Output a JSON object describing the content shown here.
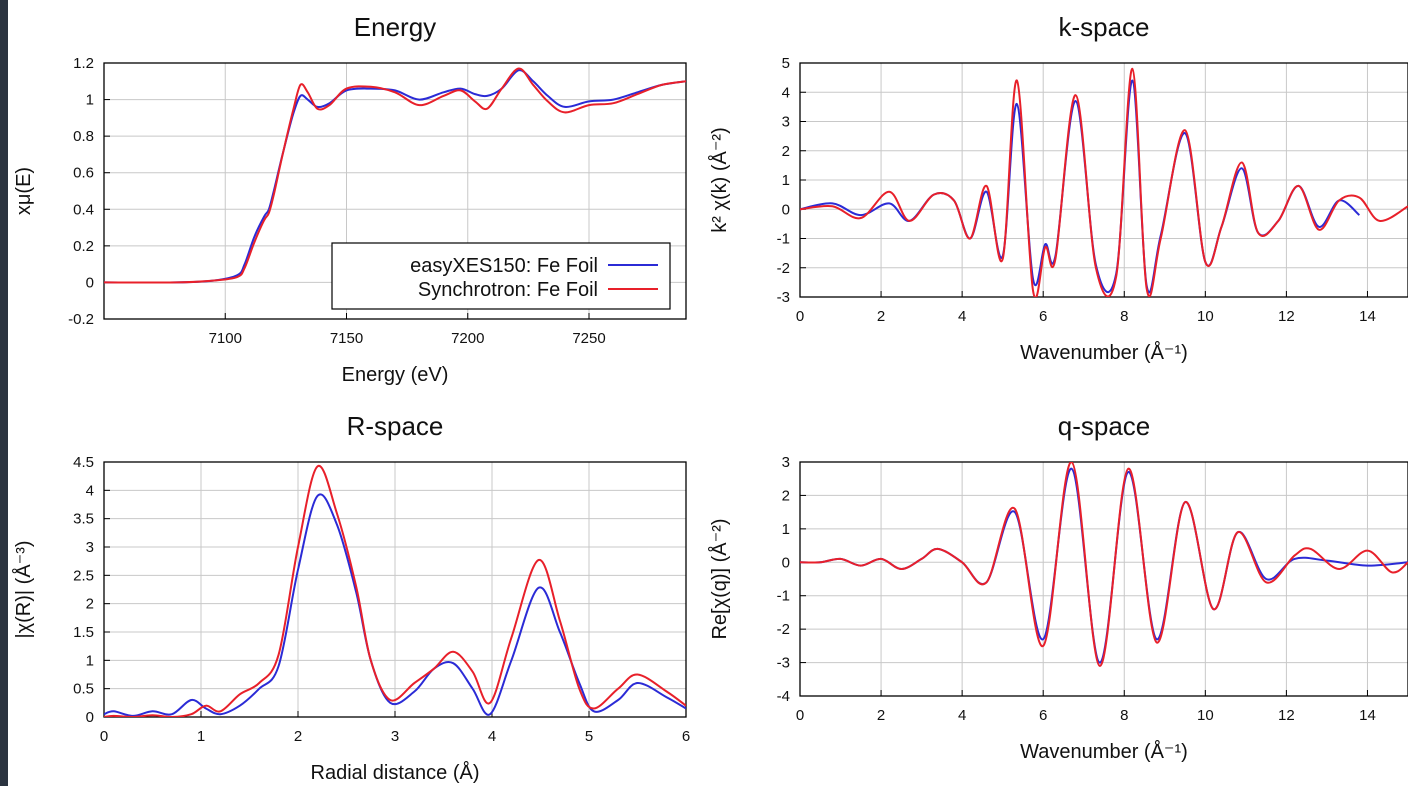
{
  "colors": {
    "blue": "#2b2bd6",
    "red": "#e8202a",
    "grid": "#c8c8c8",
    "frame": "#000000"
  },
  "chart_data": [
    {
      "type": "line",
      "title": "Energy",
      "xlabel": "Energy    (eV)",
      "ylabel": "xμ(E)",
      "xlim": [
        7050,
        7290
      ],
      "ylim": [
        -0.2,
        1.2
      ],
      "xticks": [
        7100,
        7150,
        7200,
        7250
      ],
      "yticks": [
        -0.2,
        0,
        0.2,
        0.4,
        0.6,
        0.8,
        1,
        1.2
      ],
      "legend": {
        "placement": "lower-right",
        "entries": [
          "easyXES150: Fe Foil",
          "Synchrotron: Fe Foil"
        ]
      },
      "series": [
        {
          "name": "easyXES150: Fe Foil",
          "color": "blue",
          "x": [
            7050,
            7080,
            7095,
            7105,
            7108,
            7112,
            7116,
            7118,
            7120,
            7124,
            7128,
            7131,
            7134,
            7138,
            7143,
            7150,
            7160,
            7170,
            7180,
            7190,
            7197,
            7203,
            7208,
            7214,
            7221,
            7227,
            7233,
            7240,
            7250,
            7260,
            7270,
            7280,
            7290
          ],
          "y": [
            0,
            0,
            0.01,
            0.04,
            0.1,
            0.25,
            0.36,
            0.4,
            0.5,
            0.72,
            0.92,
            1.02,
            1.0,
            0.96,
            0.98,
            1.05,
            1.06,
            1.05,
            1.0,
            1.04,
            1.06,
            1.03,
            1.02,
            1.06,
            1.16,
            1.1,
            1.02,
            0.96,
            0.99,
            1.0,
            1.04,
            1.08,
            1.1
          ]
        },
        {
          "name": "Synchrotron: Fe Foil",
          "color": "red",
          "x": [
            7050,
            7080,
            7095,
            7105,
            7108,
            7112,
            7116,
            7118,
            7120,
            7124,
            7128,
            7131,
            7134,
            7138,
            7143,
            7150,
            7160,
            7170,
            7180,
            7190,
            7197,
            7203,
            7208,
            7214,
            7221,
            7227,
            7233,
            7240,
            7250,
            7260,
            7270,
            7280,
            7290
          ],
          "y": [
            0,
            0,
            0.01,
            0.03,
            0.08,
            0.22,
            0.34,
            0.38,
            0.48,
            0.72,
            0.94,
            1.08,
            1.04,
            0.95,
            0.97,
            1.06,
            1.07,
            1.04,
            0.97,
            1.02,
            1.05,
            0.99,
            0.95,
            1.06,
            1.17,
            1.08,
            0.99,
            0.93,
            0.97,
            0.98,
            1.03,
            1.08,
            1.1
          ]
        }
      ]
    },
    {
      "type": "line",
      "title": "k-space",
      "xlabel": "Wavenumber    (Å⁻¹)",
      "ylabel": "k² χ(k)    (Å⁻²)",
      "xlim": [
        0,
        15
      ],
      "ylim": [
        -3,
        5
      ],
      "xticks": [
        0,
        2,
        4,
        6,
        8,
        10,
        12,
        14
      ],
      "yticks": [
        -3,
        -2,
        -1,
        0,
        1,
        2,
        3,
        4,
        5
      ],
      "series": [
        {
          "name": "easyXES150: Fe Foil",
          "color": "blue",
          "x": [
            0,
            0.8,
            1.5,
            2.2,
            2.7,
            3.3,
            3.8,
            4.2,
            4.6,
            5.0,
            5.35,
            5.75,
            6.05,
            6.3,
            6.8,
            7.3,
            7.8,
            8.2,
            8.55,
            8.9,
            9.5,
            10.0,
            10.4,
            10.9,
            11.3,
            11.8,
            12.3,
            12.8,
            13.3,
            13.8
          ],
          "y": [
            0,
            0.2,
            -0.2,
            0.2,
            -0.4,
            0.5,
            0.3,
            -1.0,
            0.6,
            -1.6,
            3.6,
            -2.4,
            -1.2,
            -1.6,
            3.7,
            -1.9,
            -2.2,
            4.4,
            -2.6,
            -0.9,
            2.6,
            -1.8,
            -0.6,
            1.4,
            -0.8,
            -0.4,
            0.8,
            -0.6,
            0.3,
            -0.2
          ]
        },
        {
          "name": "Synchrotron: Fe Foil",
          "color": "red",
          "x": [
            0,
            0.8,
            1.5,
            2.2,
            2.7,
            3.3,
            3.8,
            4.2,
            4.6,
            5.0,
            5.35,
            5.75,
            6.05,
            6.3,
            6.8,
            7.3,
            7.8,
            8.2,
            8.55,
            8.9,
            9.5,
            10.0,
            10.4,
            10.9,
            11.3,
            11.8,
            12.3,
            12.8,
            13.3,
            13.8,
            14.3,
            15.0
          ],
          "y": [
            0,
            0.1,
            -0.3,
            0.6,
            -0.4,
            0.5,
            0.3,
            -1.0,
            0.8,
            -1.7,
            4.4,
            -2.8,
            -1.3,
            -1.7,
            3.9,
            -2.0,
            -2.3,
            4.8,
            -2.7,
            -1.0,
            2.7,
            -1.8,
            -0.6,
            1.6,
            -0.8,
            -0.4,
            0.8,
            -0.7,
            0.3,
            0.4,
            -0.4,
            0.1
          ]
        }
      ]
    },
    {
      "type": "line",
      "title": "R-space",
      "xlabel": "Radial distance    (Å)",
      "ylabel": "|χ(R)|    (Å⁻³)",
      "xlim": [
        0,
        6
      ],
      "ylim": [
        0,
        4.5
      ],
      "xticks": [
        0,
        1,
        2,
        3,
        4,
        5,
        6
      ],
      "yticks": [
        0,
        0.5,
        1,
        1.5,
        2,
        2.5,
        3,
        3.5,
        4,
        4.5
      ],
      "series": [
        {
          "name": "easyXES150: Fe Foil",
          "color": "blue",
          "x": [
            0,
            0.1,
            0.3,
            0.5,
            0.7,
            0.9,
            1.05,
            1.2,
            1.4,
            1.6,
            1.8,
            2.0,
            2.2,
            2.4,
            2.6,
            2.75,
            2.95,
            3.2,
            3.4,
            3.6,
            3.8,
            3.98,
            4.2,
            4.48,
            4.7,
            4.9,
            5.05,
            5.3,
            5.5,
            5.8,
            6.0
          ],
          "y": [
            0.05,
            0.1,
            0.02,
            0.1,
            0.05,
            0.3,
            0.15,
            0.05,
            0.2,
            0.5,
            0.9,
            2.6,
            3.9,
            3.4,
            2.2,
            1.0,
            0.25,
            0.45,
            0.85,
            0.95,
            0.5,
            0.05,
            1.0,
            2.28,
            1.5,
            0.6,
            0.1,
            0.3,
            0.6,
            0.35,
            0.15
          ]
        },
        {
          "name": "Synchrotron: Fe Foil",
          "color": "red",
          "x": [
            0,
            0.1,
            0.3,
            0.5,
            0.7,
            0.9,
            1.05,
            1.2,
            1.4,
            1.6,
            1.8,
            2.0,
            2.2,
            2.4,
            2.6,
            2.75,
            2.95,
            3.2,
            3.4,
            3.6,
            3.8,
            3.98,
            4.2,
            4.48,
            4.7,
            4.9,
            5.05,
            5.3,
            5.5,
            5.8,
            6.0
          ],
          "y": [
            0,
            0.02,
            0,
            0.03,
            0,
            0.05,
            0.2,
            0.1,
            0.4,
            0.6,
            1.1,
            3.0,
            4.42,
            3.6,
            2.3,
            1.0,
            0.3,
            0.6,
            0.85,
            1.15,
            0.8,
            0.25,
            1.4,
            2.77,
            1.7,
            0.5,
            0.15,
            0.5,
            0.75,
            0.45,
            0.2
          ]
        }
      ]
    },
    {
      "type": "line",
      "title": "q-space",
      "xlabel": "Wavenumber    (Å⁻¹)",
      "ylabel": "Re[χ(q)]    (Å⁻²)",
      "xlim": [
        0,
        15
      ],
      "ylim": [
        -4,
        3
      ],
      "xticks": [
        0,
        2,
        4,
        6,
        8,
        10,
        12,
        14
      ],
      "yticks": [
        -4,
        -3,
        -2,
        -1,
        0,
        1,
        2,
        3
      ],
      "series": [
        {
          "name": "easyXES150: Fe Foil",
          "color": "blue",
          "x": [
            0,
            0.5,
            1.0,
            1.5,
            2.0,
            2.5,
            3.0,
            3.4,
            4.0,
            4.6,
            5.3,
            6.0,
            6.7,
            7.4,
            8.1,
            8.8,
            9.5,
            10.2,
            10.8,
            11.5,
            12.2,
            13.0,
            14.0,
            15.0
          ],
          "y": [
            0,
            0,
            0.1,
            -0.1,
            0.1,
            -0.2,
            0.1,
            0.4,
            0,
            -0.6,
            1.5,
            -2.3,
            2.8,
            -3.0,
            2.7,
            -2.3,
            1.8,
            -1.4,
            0.9,
            -0.5,
            0.1,
            0.05,
            -0.1,
            0
          ]
        },
        {
          "name": "Synchrotron: Fe Foil",
          "color": "red",
          "x": [
            0,
            0.5,
            1.0,
            1.5,
            2.0,
            2.5,
            3.0,
            3.4,
            4.0,
            4.6,
            5.3,
            6.0,
            6.7,
            7.4,
            8.1,
            8.8,
            9.5,
            10.2,
            10.8,
            11.5,
            12.2,
            12.6,
            13.3,
            14.0,
            14.6,
            15.0
          ],
          "y": [
            0,
            0,
            0.1,
            -0.1,
            0.1,
            -0.2,
            0.1,
            0.4,
            0,
            -0.6,
            1.6,
            -2.5,
            3.0,
            -3.1,
            2.8,
            -2.4,
            1.8,
            -1.4,
            0.9,
            -0.6,
            0.2,
            0.4,
            -0.2,
            0.35,
            -0.3,
            0
          ]
        }
      ]
    }
  ]
}
